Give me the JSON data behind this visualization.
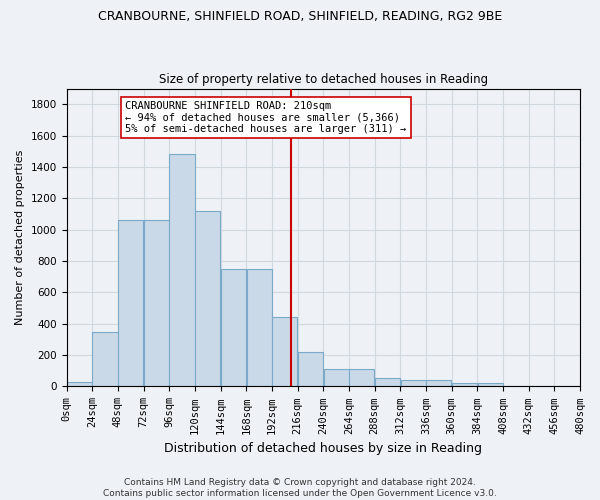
{
  "title1": "CRANBOURNE, SHINFIELD ROAD, SHINFIELD, READING, RG2 9BE",
  "title2": "Size of property relative to detached houses in Reading",
  "xlabel": "Distribution of detached houses by size in Reading",
  "ylabel": "Number of detached properties",
  "footer1": "Contains HM Land Registry data © Crown copyright and database right 2024.",
  "footer2": "Contains public sector information licensed under the Open Government Licence v3.0.",
  "annotation_title": "CRANBOURNE SHINFIELD ROAD: 210sqm",
  "annotation_line1": "← 94% of detached houses are smaller (5,366)",
  "annotation_line2": "5% of semi-detached houses are larger (311) →",
  "bin_edges": [
    0,
    24,
    48,
    72,
    96,
    120,
    144,
    168,
    192,
    216,
    240,
    264,
    288,
    312,
    336,
    360,
    384,
    408,
    432,
    456,
    480
  ],
  "bar_heights": [
    30,
    350,
    1060,
    1060,
    1480,
    1120,
    750,
    750,
    440,
    220,
    110,
    110,
    55,
    40,
    40,
    20,
    20,
    5,
    0,
    0
  ],
  "vline_x": 210,
  "bar_facecolor": "#c9d9e8",
  "bar_edgecolor": "#7aaac8",
  "vline_color": "#cc0000",
  "annotation_box_edgecolor": "#cc0000",
  "annotation_box_facecolor": "#ffffff",
  "grid_color": "#d0d8e0",
  "background_color": "#eef2f7",
  "ylim": [
    0,
    1900
  ],
  "yticks": [
    0,
    200,
    400,
    600,
    800,
    1000,
    1200,
    1400,
    1600,
    1800
  ],
  "title1_fontsize": 9,
  "title2_fontsize": 8.5,
  "ylabel_fontsize": 8,
  "xlabel_fontsize": 9,
  "footer_fontsize": 6.5,
  "tick_fontsize": 7.5,
  "annotation_fontsize": 7.5
}
